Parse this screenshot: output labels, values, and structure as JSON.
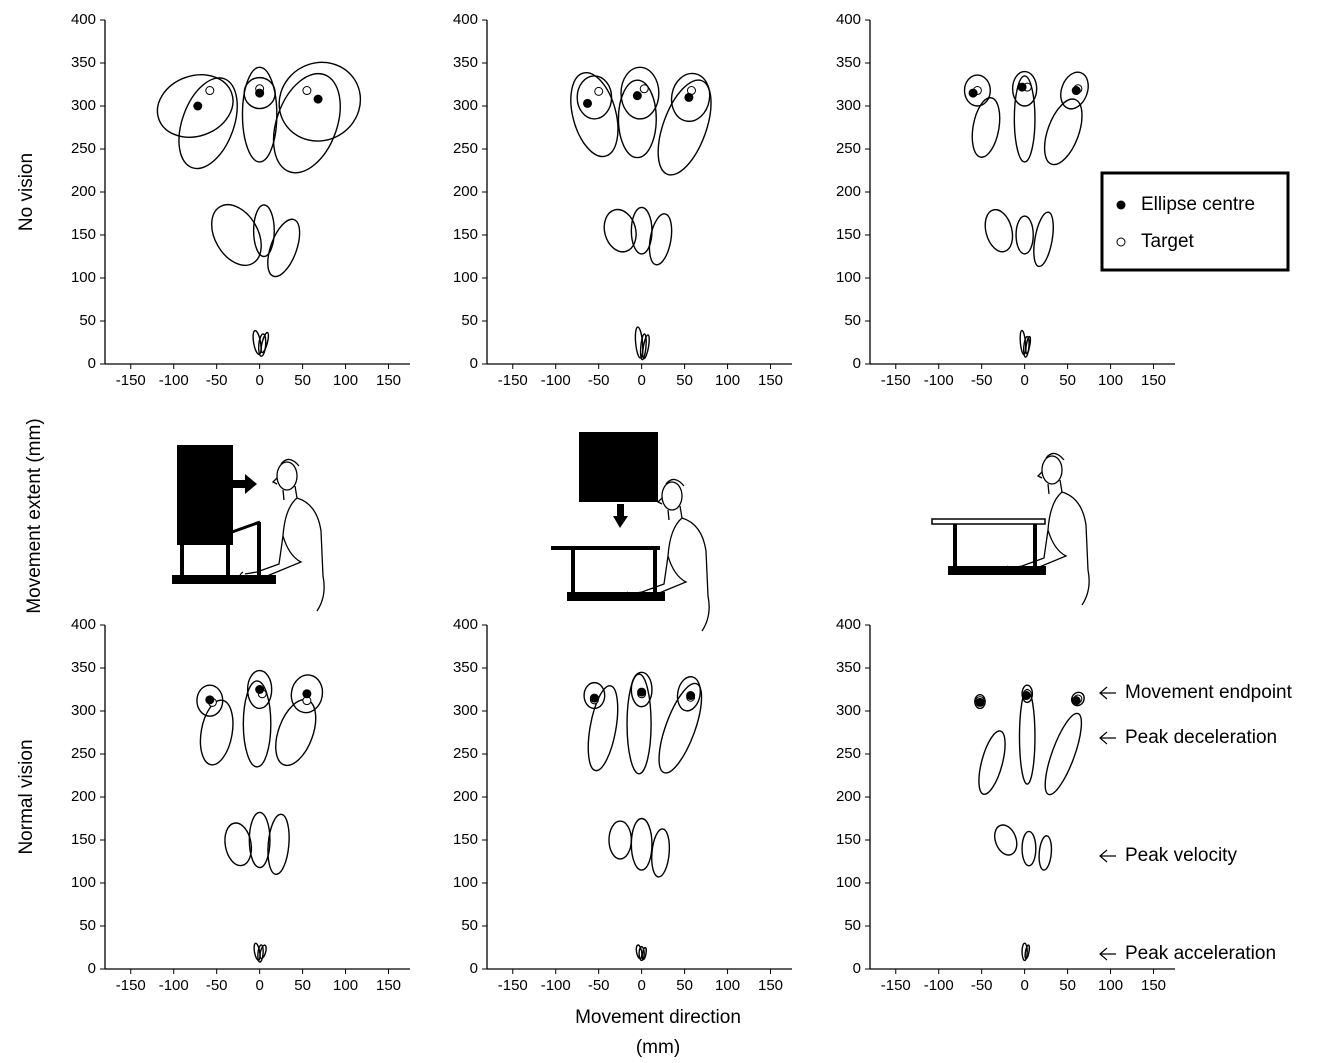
{
  "figure": {
    "row_labels": [
      "No vision",
      "Normal vision"
    ],
    "y_label": "Movement extent (mm)",
    "x_label": "Movement direction (mm)",
    "legend": [
      "Ellipse centre",
      "Target"
    ],
    "annotations": [
      "Movement endpoint",
      "Peak deceleration",
      "Peak velocity",
      "Peak acceleration"
    ]
  },
  "chart_data": [
    {
      "type": "ellipse",
      "xlim": [
        -180,
        175
      ],
      "ylim": [
        0,
        400
      ],
      "xticks": [
        -150,
        -100,
        -50,
        0,
        50,
        100,
        150
      ],
      "yticks": [
        0,
        50,
        100,
        150,
        200,
        250,
        300,
        350,
        400
      ],
      "centre_color": "#000000",
      "target_color": "#ffffff",
      "ellipses": [
        [
          -75,
          300,
          45,
          35,
          -20
        ],
        [
          -60,
          280,
          30,
          55,
          20
        ],
        [
          0,
          315,
          18,
          18,
          0
        ],
        [
          0,
          290,
          20,
          55,
          0
        ],
        [
          70,
          305,
          48,
          45,
          -30
        ],
        [
          55,
          280,
          35,
          60,
          20
        ],
        [
          -27,
          150,
          25,
          38,
          -30
        ],
        [
          5,
          155,
          12,
          30,
          0
        ],
        [
          28,
          135,
          15,
          35,
          20
        ],
        [
          -3,
          25,
          4,
          14,
          -10
        ],
        [
          3,
          22,
          4,
          13,
          5
        ],
        [
          6,
          25,
          3,
          12,
          15
        ]
      ],
      "centres": {
        "x": [
          -72,
          0,
          68
        ],
        "y": [
          300,
          315,
          308
        ]
      },
      "targets": {
        "x": [
          -58,
          0,
          55
        ],
        "y": [
          318,
          320,
          318
        ]
      }
    },
    {
      "type": "ellipse",
      "xlim": [
        -180,
        175
      ],
      "ylim": [
        0,
        400
      ],
      "xticks": [
        -150,
        -100,
        -50,
        0,
        50,
        100,
        150
      ],
      "yticks": [
        0,
        50,
        100,
        150,
        200,
        250,
        300,
        350,
        400
      ],
      "centre_color": "#000000",
      "target_color": "#ffffff",
      "ellipses": [
        [
          -55,
          310,
          20,
          25,
          0
        ],
        [
          -2,
          315,
          22,
          30,
          0
        ],
        [
          57,
          310,
          22,
          28,
          10
        ],
        [
          -55,
          290,
          25,
          50,
          -15
        ],
        [
          -5,
          285,
          22,
          45,
          0
        ],
        [
          50,
          275,
          25,
          58,
          20
        ],
        [
          -25,
          155,
          18,
          25,
          -15
        ],
        [
          0,
          155,
          12,
          27,
          0
        ],
        [
          22,
          145,
          12,
          30,
          10
        ],
        [
          -3,
          25,
          4,
          18,
          -5
        ],
        [
          2,
          20,
          3,
          15,
          5
        ],
        [
          5,
          20,
          3,
          14,
          10
        ]
      ],
      "centres": {
        "x": [
          -63,
          -5,
          55
        ],
        "y": [
          303,
          312,
          310
        ]
      },
      "targets": {
        "x": [
          -50,
          3,
          58
        ],
        "y": [
          317,
          320,
          318
        ]
      }
    },
    {
      "type": "ellipse",
      "xlim": [
        -180,
        175
      ],
      "ylim": [
        0,
        400
      ],
      "xticks": [
        -150,
        -100,
        -50,
        0,
        50,
        100,
        150
      ],
      "yticks": [
        0,
        50,
        100,
        150,
        200,
        250,
        300,
        350,
        400
      ],
      "centre_color": "#000000",
      "target_color": "#ffffff",
      "ellipses": [
        [
          -55,
          318,
          15,
          18,
          0
        ],
        [
          0,
          320,
          14,
          20,
          0
        ],
        [
          58,
          318,
          15,
          22,
          20
        ],
        [
          -45,
          275,
          15,
          35,
          10
        ],
        [
          0,
          285,
          12,
          50,
          0
        ],
        [
          45,
          270,
          18,
          40,
          20
        ],
        [
          -30,
          155,
          15,
          25,
          -15
        ],
        [
          0,
          150,
          10,
          22,
          0
        ],
        [
          22,
          145,
          10,
          32,
          10
        ],
        [
          -2,
          25,
          3,
          14,
          -5
        ],
        [
          2,
          20,
          3,
          12,
          5
        ],
        [
          4,
          22,
          2,
          10,
          10
        ]
      ],
      "centres": {
        "x": [
          -60,
          -3,
          60
        ],
        "y": [
          315,
          322,
          318
        ]
      },
      "targets": {
        "x": [
          -55,
          3,
          62
        ],
        "y": [
          318,
          322,
          320
        ]
      }
    },
    {
      "type": "ellipse",
      "xlim": [
        -180,
        175
      ],
      "ylim": [
        0,
        400
      ],
      "xticks": [
        -150,
        -100,
        -50,
        0,
        50,
        100,
        150
      ],
      "yticks": [
        0,
        50,
        100,
        150,
        200,
        250,
        300,
        350,
        400
      ],
      "centre_color": "#000000",
      "target_color": "#ffffff",
      "ellipses": [
        [
          -58,
          312,
          15,
          18,
          0
        ],
        [
          0,
          325,
          14,
          22,
          0
        ],
        [
          55,
          320,
          18,
          22,
          10
        ],
        [
          -50,
          275,
          18,
          38,
          10
        ],
        [
          -3,
          285,
          16,
          50,
          0
        ],
        [
          42,
          275,
          20,
          40,
          20
        ],
        [
          -25,
          145,
          15,
          25,
          -10
        ],
        [
          0,
          150,
          12,
          32,
          0
        ],
        [
          22,
          145,
          12,
          35,
          5
        ],
        [
          -3,
          20,
          3,
          10,
          -10
        ],
        [
          1,
          18,
          3,
          10,
          5
        ],
        [
          4,
          20,
          3,
          8,
          15
        ]
      ],
      "centres": {
        "x": [
          -58,
          0,
          55
        ],
        "y": [
          313,
          325,
          320
        ]
      },
      "targets": {
        "x": [
          -55,
          3,
          55
        ],
        "y": [
          310,
          320,
          312
        ]
      }
    },
    {
      "type": "ellipse",
      "xlim": [
        -180,
        175
      ],
      "ylim": [
        0,
        400
      ],
      "xticks": [
        -150,
        -100,
        -50,
        0,
        50,
        100,
        150
      ],
      "yticks": [
        0,
        50,
        100,
        150,
        200,
        250,
        300,
        350,
        400
      ],
      "centre_color": "#000000",
      "target_color": "#ffffff",
      "ellipses": [
        [
          -55,
          318,
          12,
          15,
          0
        ],
        [
          0,
          325,
          12,
          20,
          0
        ],
        [
          55,
          320,
          13,
          20,
          10
        ],
        [
          -45,
          280,
          15,
          50,
          10
        ],
        [
          -3,
          285,
          14,
          58,
          0
        ],
        [
          45,
          280,
          17,
          55,
          20
        ],
        [
          -25,
          150,
          13,
          22,
          0
        ],
        [
          0,
          145,
          12,
          30,
          0
        ],
        [
          22,
          135,
          10,
          28,
          5
        ],
        [
          -3,
          20,
          3,
          8,
          -10
        ],
        [
          0,
          18,
          3,
          8,
          0
        ],
        [
          3,
          18,
          2,
          7,
          10
        ]
      ],
      "centres": {
        "x": [
          -55,
          0,
          57
        ],
        "y": [
          315,
          322,
          318
        ]
      },
      "targets": {
        "x": [
          -55,
          0,
          57
        ],
        "y": [
          313,
          320,
          316
        ]
      }
    },
    {
      "type": "ellipse",
      "xlim": [
        -180,
        175
      ],
      "ylim": [
        0,
        400
      ],
      "xticks": [
        -150,
        -100,
        -50,
        0,
        50,
        100,
        150
      ],
      "yticks": [
        0,
        50,
        100,
        150,
        200,
        250,
        300,
        350,
        400
      ],
      "centre_color": "#000000",
      "target_color": "#ffffff",
      "ellipses": [
        [
          -52,
          311,
          6,
          8,
          0
        ],
        [
          3,
          320,
          6,
          10,
          0
        ],
        [
          62,
          314,
          7,
          8,
          30
        ],
        [
          -38,
          240,
          12,
          38,
          15
        ],
        [
          3,
          270,
          9,
          55,
          0
        ],
        [
          45,
          250,
          13,
          50,
          20
        ],
        [
          -22,
          150,
          12,
          18,
          -20
        ],
        [
          5,
          140,
          8,
          20,
          0
        ],
        [
          24,
          135,
          7,
          20,
          5
        ],
        [
          0,
          20,
          3,
          10,
          0
        ],
        [
          3,
          20,
          2,
          8,
          10
        ]
      ],
      "centres": {
        "x": [
          -52,
          2,
          60
        ],
        "y": [
          310,
          318,
          312
        ]
      },
      "targets": {
        "x": [
          -52,
          3,
          62
        ],
        "y": [
          312,
          320,
          314
        ]
      }
    }
  ]
}
